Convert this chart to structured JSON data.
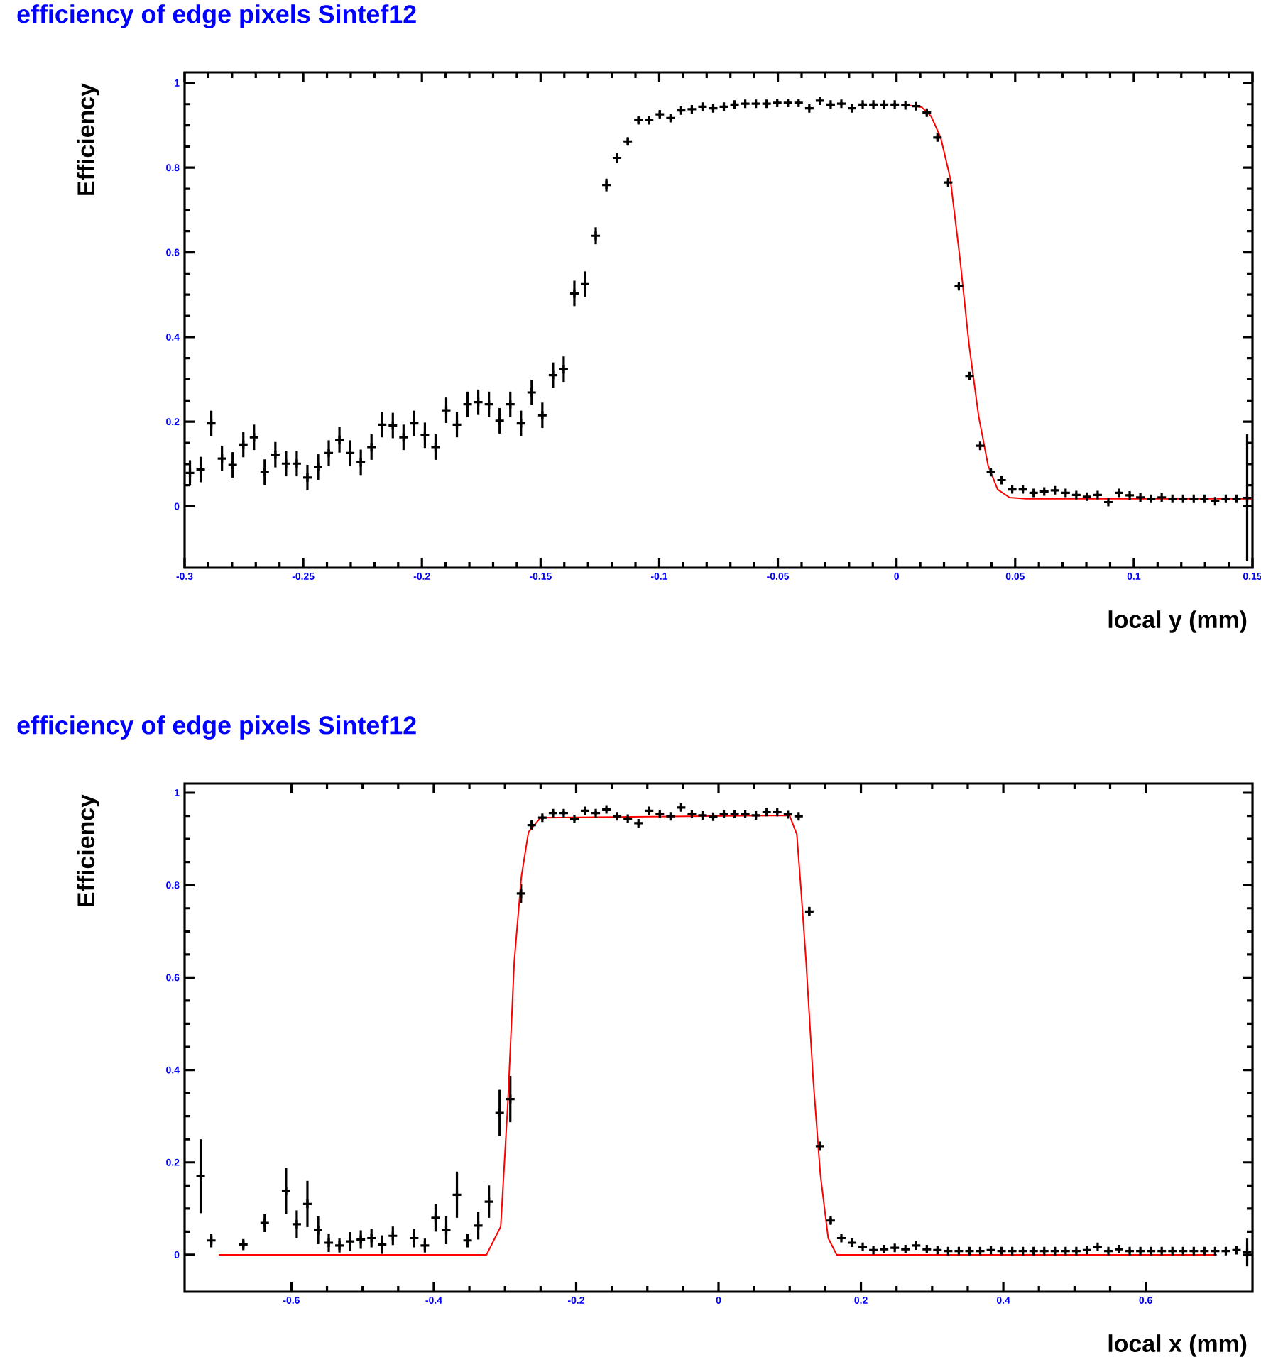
{
  "chart_data": [
    {
      "type": "scatter",
      "title": "efficiency of edge pixels Sintef12",
      "xlabel": "local y (mm)",
      "ylabel": "Efficiency",
      "xlim": [
        -0.3,
        0.15
      ],
      "ylim": [
        -0.145,
        1.025
      ],
      "xticks": [
        -0.3,
        -0.25,
        -0.2,
        -0.15,
        -0.1,
        -0.05,
        0,
        0.05,
        0.1,
        0.15
      ],
      "yticks": [
        0,
        0.2,
        0.4,
        0.6,
        0.8,
        1
      ],
      "series": [
        {
          "type": "scatter",
          "color": "#000000",
          "marker": "cross",
          "x": [
            -0.29775,
            -0.29325,
            -0.28875,
            -0.28425,
            -0.27975,
            -0.27525,
            -0.27075,
            -0.26625,
            -0.26175,
            -0.25725,
            -0.25275,
            -0.24825,
            -0.24375,
            -0.23925,
            -0.23475,
            -0.23025,
            -0.22575,
            -0.22125,
            -0.21675,
            -0.21225,
            -0.20775,
            -0.20325,
            -0.19875,
            -0.19425,
            -0.18975,
            -0.18525,
            -0.18075,
            -0.17625,
            -0.17175,
            -0.16725,
            -0.16275,
            -0.15825,
            -0.15375,
            -0.14925,
            -0.14475,
            -0.14025,
            -0.13575,
            -0.13125,
            -0.12675,
            -0.12225,
            -0.11775,
            -0.11325,
            -0.10875,
            -0.10425,
            -0.09975,
            -0.09525,
            -0.09075,
            -0.08625,
            -0.08175,
            -0.07725,
            -0.07275,
            -0.06825,
            -0.06375,
            -0.05925,
            -0.05475,
            -0.05025,
            -0.04575,
            -0.04125,
            -0.03675,
            -0.03225,
            -0.02775,
            -0.02325,
            -0.01875,
            -0.01425,
            -0.00975,
            -0.00525,
            -0.00075,
            0.00375,
            0.00825,
            0.01275,
            0.01725,
            0.02175,
            0.02625,
            0.03075,
            0.03525,
            0.03975,
            0.04425,
            0.04875,
            0.05325,
            0.05775,
            0.06225,
            0.06675,
            0.07125,
            0.07575,
            0.08025,
            0.08475,
            0.08925,
            0.09375,
            0.09825,
            0.10275,
            0.10725,
            0.11175,
            0.11625,
            0.12075,
            0.12525,
            0.12975,
            0.13425,
            0.13875,
            0.14325,
            0.14775
          ],
          "values": [
            0.079,
            0.087,
            0.196,
            0.113,
            0.098,
            0.146,
            0.163,
            0.081,
            0.122,
            0.101,
            0.101,
            0.068,
            0.093,
            0.126,
            0.157,
            0.126,
            0.104,
            0.14,
            0.193,
            0.191,
            0.163,
            0.196,
            0.168,
            0.14,
            0.227,
            0.193,
            0.241,
            0.246,
            0.241,
            0.202,
            0.241,
            0.196,
            0.269,
            0.215,
            0.31,
            0.324,
            0.503,
            0.525,
            0.639,
            0.759,
            0.823,
            0.862,
            0.912,
            0.912,
            0.926,
            0.917,
            0.935,
            0.938,
            0.944,
            0.94,
            0.944,
            0.949,
            0.951,
            0.951,
            0.951,
            0.953,
            0.953,
            0.953,
            0.94,
            0.958,
            0.949,
            0.951,
            0.94,
            0.949,
            0.949,
            0.949,
            0.949,
            0.947,
            0.945,
            0.93,
            0.871,
            0.765,
            0.52,
            0.308,
            0.143,
            0.081,
            0.062,
            0.04,
            0.04,
            0.032,
            0.035,
            0.038,
            0.032,
            0.027,
            0.023,
            0.027,
            0.01,
            0.032,
            0.026,
            0.021,
            0.018,
            0.021,
            0.018,
            0.018,
            0.018,
            0.018,
            0.012,
            0.018,
            0.018,
            0.02
          ],
          "errors": [
            0.03,
            0.03,
            0.03,
            0.03,
            0.03,
            0.03,
            0.03,
            0.03,
            0.03,
            0.03,
            0.03,
            0.03,
            0.03,
            0.03,
            0.03,
            0.03,
            0.03,
            0.03,
            0.03,
            0.03,
            0.03,
            0.03,
            0.03,
            0.03,
            0.03,
            0.03,
            0.03,
            0.03,
            0.03,
            0.03,
            0.03,
            0.03,
            0.03,
            0.03,
            0.03,
            0.03,
            0.03,
            0.03,
            0.02,
            0.015,
            0.012,
            0.008,
            0.008,
            0.008,
            0.008,
            0.004,
            0.004,
            0.004,
            0.004,
            0.004,
            0.004,
            0.004,
            0.004,
            0.004,
            0.004,
            0.004,
            0.004,
            0.004,
            0.004,
            0.004,
            0.004,
            0.004,
            0.004,
            0.004,
            0.004,
            0.004,
            0.004,
            0.004,
            0.004,
            0.006,
            0.006,
            0.006,
            0.006,
            0.006,
            0.006,
            0.006,
            0.006,
            0.003,
            0.003,
            0.003,
            0.003,
            0.003,
            0.003,
            0.003,
            0.003,
            0.003,
            0.003,
            0.003,
            0.003,
            0.003,
            0.003,
            0.003,
            0.003,
            0.003,
            0.003,
            0.003,
            0.003,
            0.003,
            0.003,
            0.15
          ]
        },
        {
          "type": "line",
          "color": "#ff0000",
          "x": [
            0.0026,
            0.0106,
            0.0146,
            0.0186,
            0.0226,
            0.0266,
            0.0306,
            0.0346,
            0.0386,
            0.0426,
            0.0476,
            0.0546,
            0.15
          ],
          "values": [
            0.949,
            0.943,
            0.921,
            0.871,
            0.776,
            0.592,
            0.38,
            0.213,
            0.096,
            0.04,
            0.021,
            0.018,
            0.018
          ]
        }
      ]
    },
    {
      "type": "scatter",
      "title": "efficiency of edge pixels Sintef12",
      "xlabel": "local x (mm)",
      "ylabel": "Efficiency",
      "xlim": [
        -0.75,
        0.75
      ],
      "ylim": [
        -0.08,
        1.02
      ],
      "xticks": [
        -0.6,
        -0.4,
        -0.2,
        0,
        0.2,
        0.4,
        0.6
      ],
      "yticks": [
        0,
        0.2,
        0.4,
        0.6,
        0.8,
        1
      ],
      "series": [
        {
          "type": "scatter",
          "color": "#000000",
          "marker": "cross",
          "x": [
            -0.7275,
            -0.7125,
            -0.6675,
            -0.6375,
            -0.6075,
            -0.5925,
            -0.5775,
            -0.5625,
            -0.5475,
            -0.5325,
            -0.5175,
            -0.5025,
            -0.4875,
            -0.4725,
            -0.4575,
            -0.4275,
            -0.4125,
            -0.3975,
            -0.3825,
            -0.3675,
            -0.3525,
            -0.3375,
            -0.3225,
            -0.3075,
            -0.2925,
            -0.2775,
            -0.2625,
            -0.2475,
            -0.2325,
            -0.2175,
            -0.2025,
            -0.1875,
            -0.1725,
            -0.1575,
            -0.1425,
            -0.1275,
            -0.1125,
            -0.0975,
            -0.0825,
            -0.0675,
            -0.0525,
            -0.0375,
            -0.0225,
            -0.0075,
            0.0075,
            0.0225,
            0.0375,
            0.0525,
            0.0675,
            0.0825,
            0.0975,
            0.1125,
            0.1275,
            0.1425,
            0.1575,
            0.1725,
            0.1875,
            0.2025,
            0.2175,
            0.2325,
            0.2475,
            0.2625,
            0.2775,
            0.2925,
            0.3075,
            0.3225,
            0.3375,
            0.3525,
            0.3675,
            0.3825,
            0.3975,
            0.4125,
            0.4275,
            0.4425,
            0.4575,
            0.4725,
            0.4875,
            0.5025,
            0.5175,
            0.5325,
            0.5475,
            0.5625,
            0.5775,
            0.5925,
            0.6075,
            0.6225,
            0.6375,
            0.6525,
            0.6675,
            0.6825,
            0.6975,
            0.7125,
            0.7275,
            0.7425
          ],
          "values": [
            0.17,
            0.031,
            0.022,
            0.069,
            0.138,
            0.066,
            0.11,
            0.053,
            0.026,
            0.02,
            0.029,
            0.033,
            0.036,
            0.022,
            0.041,
            0.036,
            0.02,
            0.08,
            0.053,
            0.13,
            0.031,
            0.063,
            0.115,
            0.307,
            0.337,
            0.782,
            0.93,
            0.946,
            0.956,
            0.956,
            0.943,
            0.961,
            0.956,
            0.964,
            0.949,
            0.944,
            0.934,
            0.961,
            0.954,
            0.949,
            0.968,
            0.954,
            0.951,
            0.948,
            0.954,
            0.954,
            0.954,
            0.951,
            0.958,
            0.958,
            0.953,
            0.949,
            0.743,
            0.235,
            0.074,
            0.036,
            0.026,
            0.017,
            0.01,
            0.012,
            0.015,
            0.012,
            0.02,
            0.012,
            0.01,
            0.008,
            0.008,
            0.008,
            0.008,
            0.01,
            0.008,
            0.008,
            0.008,
            0.008,
            0.008,
            0.008,
            0.008,
            0.008,
            0.01,
            0.017,
            0.008,
            0.012,
            0.008,
            0.008,
            0.008,
            0.008,
            0.008,
            0.008,
            0.008,
            0.008,
            0.008,
            0.008,
            0.01,
            0.005
          ],
          "errors": [
            0.08,
            0.015,
            0.012,
            0.02,
            0.05,
            0.03,
            0.05,
            0.03,
            0.02,
            0.015,
            0.02,
            0.02,
            0.02,
            0.02,
            0.02,
            0.02,
            0.015,
            0.03,
            0.03,
            0.05,
            0.015,
            0.03,
            0.035,
            0.05,
            0.05,
            0.02,
            0.01,
            0.004,
            0.004,
            0.004,
            0.004,
            0.004,
            0.004,
            0.004,
            0.004,
            0.004,
            0.004,
            0.004,
            0.004,
            0.004,
            0.004,
            0.004,
            0.004,
            0.004,
            0.004,
            0.004,
            0.004,
            0.004,
            0.004,
            0.004,
            0.004,
            0.004,
            0.01,
            0.01,
            0.006,
            0.003,
            0.003,
            0.003,
            0.003,
            0.003,
            0.003,
            0.003,
            0.003,
            0.003,
            0.003,
            0.003,
            0.003,
            0.003,
            0.003,
            0.003,
            0.003,
            0.003,
            0.003,
            0.003,
            0.003,
            0.003,
            0.003,
            0.003,
            0.003,
            0.003,
            0.003,
            0.003,
            0.003,
            0.003,
            0.003,
            0.003,
            0.003,
            0.003,
            0.003,
            0.003,
            0.003,
            0.003,
            0.003,
            0.03
          ]
        },
        {
          "type": "line",
          "color": "#ff0000",
          "x": [
            -0.702,
            -0.326,
            -0.306,
            -0.296,
            -0.287,
            -0.277,
            -0.267,
            -0.25,
            0.0997,
            0.11,
            0.116,
            0.123,
            0.133,
            0.143,
            0.154,
            0.166,
            0.7
          ],
          "values": [
            0,
            0,
            0.061,
            0.327,
            0.634,
            0.818,
            0.915,
            0.946,
            0.951,
            0.91,
            0.787,
            0.634,
            0.378,
            0.174,
            0.036,
            0,
            0
          ]
        }
      ]
    }
  ]
}
